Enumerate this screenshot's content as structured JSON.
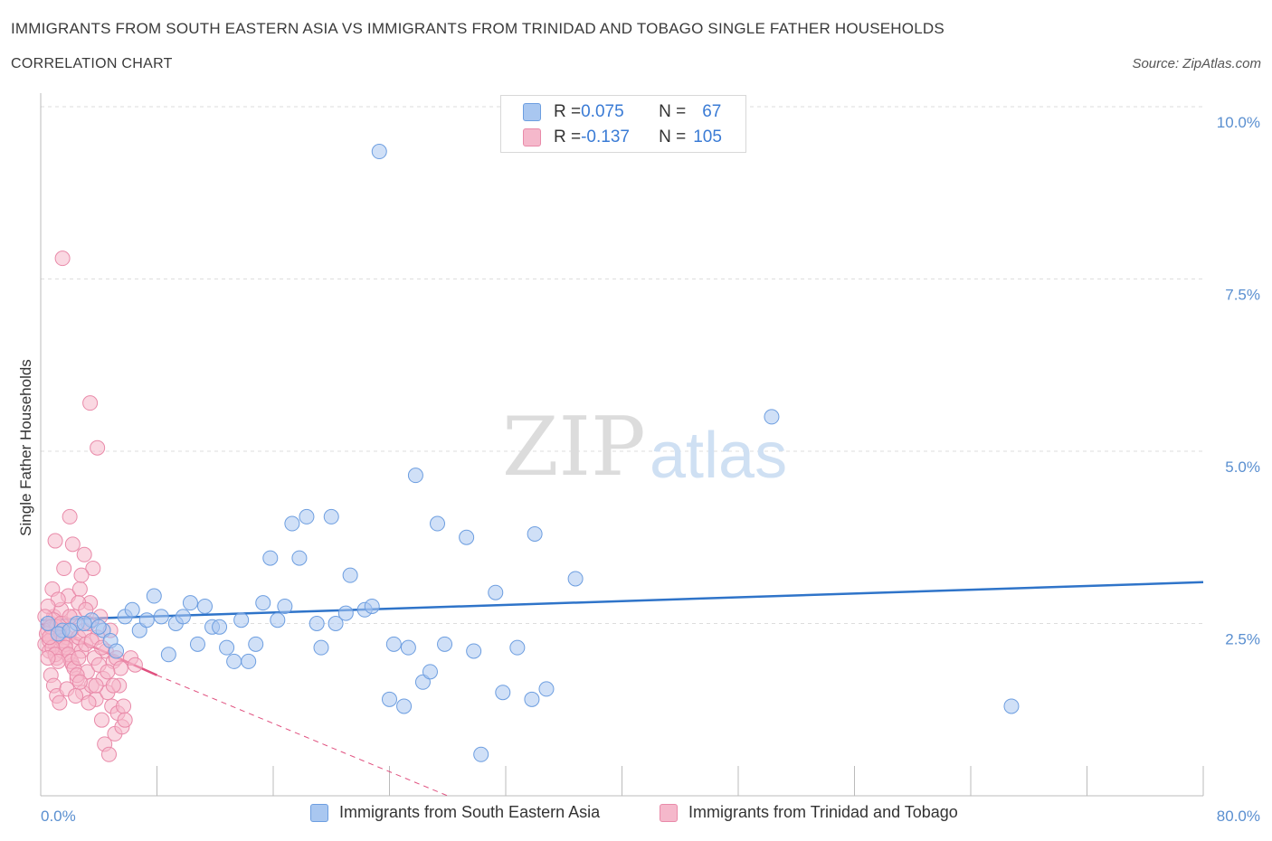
{
  "header": {
    "title": "IMMIGRANTS FROM SOUTH EASTERN ASIA VS IMMIGRANTS FROM TRINIDAD AND TOBAGO SINGLE FATHER HOUSEHOLDS",
    "subtitle": "CORRELATION CHART",
    "source": "Source: ZipAtlas.com"
  },
  "watermark": {
    "zip": "ZIP",
    "atlas": "atlas"
  },
  "legend": {
    "rows": [
      {
        "r_label": "R = ",
        "r_value": "0.075",
        "n_label": "N = ",
        "n_value": "67",
        "color": "#a9c7f0"
      },
      {
        "r_label": "R = ",
        "r_value": "-0.137",
        "n_label": "N = ",
        "n_value": "105",
        "color": "#f5b8cb"
      }
    ]
  },
  "colors": {
    "blue_fill": "#a9c7f0",
    "blue_stroke": "#6d9ee0",
    "blue_line": "#2f74c9",
    "pink_fill": "#f5b8cb",
    "pink_stroke": "#e98aa9",
    "pink_line": "#e0507f",
    "grid": "#dddddd",
    "axis_text": "#5a8fd0"
  },
  "chart_data": {
    "type": "scatter",
    "title": "IMMIGRANTS FROM SOUTH EASTERN ASIA VS IMMIGRANTS FROM TRINIDAD AND TOBAGO SINGLE FATHER HOUSEHOLDS",
    "ylabel": "Single Father Households",
    "xlabel": "",
    "xlim": [
      0,
      80
    ],
    "ylim": [
      0,
      10
    ],
    "x_tick_labels": [
      "0.0%",
      "80.0%"
    ],
    "y_ticks": [
      {
        "value": 2.5,
        "label": "2.5%"
      },
      {
        "value": 5.0,
        "label": "5.0%"
      },
      {
        "value": 7.5,
        "label": "7.5%"
      },
      {
        "value": 10.0,
        "label": "10.0%"
      }
    ],
    "series": [
      {
        "name": "Immigrants from South Eastern Asia",
        "color": "#a9c7f0",
        "trend": {
          "x": [
            0,
            80
          ],
          "y": [
            2.55,
            3.1
          ]
        },
        "points": [
          [
            0.5,
            2.5
          ],
          [
            1.5,
            2.4
          ],
          [
            2.5,
            2.5
          ],
          [
            3.5,
            2.55
          ],
          [
            4.3,
            2.4
          ],
          [
            4.8,
            2.25
          ],
          [
            5.2,
            2.1
          ],
          [
            5.8,
            2.6
          ],
          [
            6.3,
            2.7
          ],
          [
            6.8,
            2.4
          ],
          [
            7.3,
            2.55
          ],
          [
            7.8,
            2.9
          ],
          [
            8.3,
            2.6
          ],
          [
            8.8,
            2.05
          ],
          [
            9.3,
            2.5
          ],
          [
            9.8,
            2.6
          ],
          [
            10.3,
            2.8
          ],
          [
            10.8,
            2.2
          ],
          [
            11.3,
            2.75
          ],
          [
            11.8,
            2.45
          ],
          [
            12.3,
            2.45
          ],
          [
            12.8,
            2.15
          ],
          [
            13.3,
            1.95
          ],
          [
            13.8,
            2.55
          ],
          [
            14.3,
            1.95
          ],
          [
            14.8,
            2.2
          ],
          [
            15.3,
            2.8
          ],
          [
            15.8,
            3.45
          ],
          [
            16.3,
            2.55
          ],
          [
            16.8,
            2.75
          ],
          [
            17.3,
            3.95
          ],
          [
            17.8,
            3.45
          ],
          [
            18.3,
            4.05
          ],
          [
            19.0,
            2.5
          ],
          [
            19.3,
            2.15
          ],
          [
            20.0,
            4.05
          ],
          [
            20.3,
            2.5
          ],
          [
            21.0,
            2.65
          ],
          [
            21.3,
            3.2
          ],
          [
            22.3,
            2.7
          ],
          [
            22.8,
            2.75
          ],
          [
            23.3,
            9.35
          ],
          [
            24.0,
            1.4
          ],
          [
            24.3,
            2.2
          ],
          [
            25.0,
            1.3
          ],
          [
            25.3,
            2.15
          ],
          [
            25.8,
            4.65
          ],
          [
            26.3,
            1.65
          ],
          [
            26.8,
            1.8
          ],
          [
            27.3,
            3.95
          ],
          [
            27.8,
            2.2
          ],
          [
            29.3,
            3.75
          ],
          [
            29.8,
            2.1
          ],
          [
            30.3,
            0.6
          ],
          [
            31.3,
            2.95
          ],
          [
            31.8,
            1.5
          ],
          [
            32.8,
            2.15
          ],
          [
            33.8,
            1.4
          ],
          [
            34.0,
            3.8
          ],
          [
            34.8,
            1.55
          ],
          [
            36.8,
            3.15
          ],
          [
            50.3,
            5.5
          ],
          [
            66.8,
            1.3
          ],
          [
            1.2,
            2.35
          ],
          [
            2.0,
            2.4
          ],
          [
            3.0,
            2.5
          ],
          [
            4.0,
            2.45
          ]
        ]
      },
      {
        "name": "Immigrants from Trinidad and Tobago",
        "color": "#f5b8cb",
        "trend": {
          "x": [
            0,
            8
          ],
          "y": [
            2.5,
            1.75
          ],
          "dash_to": {
            "x": 28,
            "y": 0
          }
        },
        "points": [
          [
            0.3,
            2.2
          ],
          [
            0.5,
            2.4
          ],
          [
            0.6,
            2.1
          ],
          [
            0.7,
            2.5
          ],
          [
            0.8,
            2.3
          ],
          [
            0.9,
            2.6
          ],
          [
            1.0,
            2.2
          ],
          [
            1.1,
            2.0
          ],
          [
            1.2,
            2.4
          ],
          [
            1.3,
            2.3
          ],
          [
            1.4,
            2.7
          ],
          [
            1.5,
            2.1
          ],
          [
            1.6,
            2.5
          ],
          [
            1.7,
            2.2
          ],
          [
            1.8,
            2.3
          ],
          [
            1.9,
            2.9
          ],
          [
            2.0,
            2.0
          ],
          [
            2.1,
            2.4
          ],
          [
            2.2,
            1.9
          ],
          [
            2.3,
            2.6
          ],
          [
            2.4,
            2.2
          ],
          [
            2.5,
            1.7
          ],
          [
            2.6,
            2.3
          ],
          [
            2.7,
            3.0
          ],
          [
            2.8,
            2.1
          ],
          [
            2.9,
            1.5
          ],
          [
            3.0,
            2.4
          ],
          [
            3.1,
            2.2
          ],
          [
            3.2,
            1.8
          ],
          [
            3.3,
            2.5
          ],
          [
            3.4,
            2.8
          ],
          [
            3.5,
            1.6
          ],
          [
            3.6,
            3.3
          ],
          [
            3.7,
            2.0
          ],
          [
            3.8,
            1.4
          ],
          [
            3.9,
            2.3
          ],
          [
            4.0,
            1.9
          ],
          [
            4.1,
            2.6
          ],
          [
            4.2,
            1.1
          ],
          [
            4.3,
            1.7
          ],
          [
            4.4,
            0.75
          ],
          [
            4.5,
            2.1
          ],
          [
            4.6,
            1.5
          ],
          [
            4.7,
            0.6
          ],
          [
            4.8,
            2.4
          ],
          [
            4.9,
            1.3
          ],
          [
            5.0,
            1.95
          ],
          [
            5.1,
            0.9
          ],
          [
            5.2,
            2.0
          ],
          [
            5.3,
            1.2
          ],
          [
            5.4,
            1.6
          ],
          [
            5.5,
            1.85
          ],
          [
            5.6,
            1.0
          ],
          [
            5.7,
            1.3
          ],
          [
            5.8,
            1.1
          ],
          [
            6.2,
            2.0
          ],
          [
            6.5,
            1.9
          ],
          [
            1.5,
            7.8
          ],
          [
            3.4,
            5.7
          ],
          [
            3.9,
            5.05
          ],
          [
            2.0,
            4.05
          ],
          [
            1.0,
            3.7
          ],
          [
            2.2,
            3.65
          ],
          [
            3.0,
            3.5
          ],
          [
            1.6,
            3.3
          ],
          [
            2.8,
            3.2
          ],
          [
            0.8,
            3.0
          ],
          [
            1.2,
            2.85
          ],
          [
            2.6,
            2.8
          ],
          [
            0.5,
            2.75
          ],
          [
            0.9,
            2.55
          ],
          [
            1.1,
            2.45
          ],
          [
            1.3,
            2.35
          ],
          [
            1.5,
            2.25
          ],
          [
            1.7,
            2.15
          ],
          [
            1.9,
            2.05
          ],
          [
            2.1,
            1.95
          ],
          [
            2.3,
            1.85
          ],
          [
            2.5,
            1.75
          ],
          [
            2.7,
            1.65
          ],
          [
            0.4,
            2.35
          ],
          [
            0.6,
            2.25
          ],
          [
            0.8,
            2.15
          ],
          [
            1.0,
            2.05
          ],
          [
            1.2,
            1.95
          ],
          [
            0.7,
            1.75
          ],
          [
            0.9,
            1.6
          ],
          [
            1.1,
            1.45
          ],
          [
            1.3,
            1.35
          ],
          [
            1.8,
            1.55
          ],
          [
            2.4,
            1.45
          ],
          [
            3.3,
            1.35
          ],
          [
            3.8,
            1.6
          ],
          [
            4.6,
            1.8
          ],
          [
            5.0,
            1.6
          ],
          [
            0.3,
            2.6
          ],
          [
            0.5,
            2.0
          ],
          [
            0.7,
            2.45
          ],
          [
            1.4,
            2.5
          ],
          [
            2.0,
            2.6
          ],
          [
            2.6,
            2.0
          ],
          [
            3.1,
            2.7
          ],
          [
            3.5,
            2.25
          ],
          [
            4.2,
            2.15
          ],
          [
            0.6,
            2.3
          ]
        ]
      }
    ]
  }
}
